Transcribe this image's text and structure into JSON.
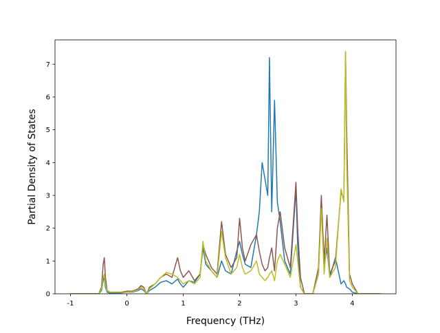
{
  "chart_data": {
    "type": "line",
    "xlabel": "Frequency (THz)",
    "ylabel": "Partial Density of States",
    "x": [
      -1,
      -0.5,
      -0.45,
      -0.42,
      -0.4,
      -0.38,
      -0.35,
      -0.3,
      -0.2,
      -0.1,
      0,
      0.1,
      0.2,
      0.25,
      0.3,
      0.35,
      0.4,
      0.5,
      0.6,
      0.7,
      0.8,
      0.9,
      0.95,
      1.0,
      1.1,
      1.2,
      1.3,
      1.35,
      1.4,
      1.5,
      1.6,
      1.68,
      1.75,
      1.85,
      1.95,
      2.0,
      2.05,
      2.1,
      2.2,
      2.3,
      2.35,
      2.4,
      2.45,
      2.5,
      2.53,
      2.57,
      2.62,
      2.67,
      2.72,
      2.8,
      2.9,
      3.0,
      3.03,
      3.08,
      3.15,
      3.3,
      3.4,
      3.45,
      3.5,
      3.55,
      3.6,
      3.7,
      3.8,
      3.85,
      3.88,
      3.9,
      3.95,
      4.0,
      4.1,
      4.5
    ],
    "series": [
      {
        "color": "#1f77b4",
        "values": [
          0,
          0,
          0.1,
          0.4,
          0.5,
          0.2,
          0.05,
          0.02,
          0.02,
          0.03,
          0.05,
          0.05,
          0.1,
          0.15,
          0.1,
          0,
          0.1,
          0.2,
          0.35,
          0.4,
          0.3,
          0.45,
          0.3,
          0.2,
          0.4,
          0.35,
          0.6,
          1.4,
          0.9,
          0.7,
          0.5,
          1.0,
          0.7,
          0.6,
          1.3,
          1.6,
          1.2,
          0.9,
          0.8,
          1.8,
          2.5,
          4.0,
          3.5,
          3.0,
          7.2,
          2.5,
          5.9,
          2.8,
          2.2,
          1.0,
          0.6,
          3.2,
          1.5,
          0.2,
          0,
          0,
          0.6,
          2.8,
          0.8,
          1.4,
          0.5,
          1.1,
          0.3,
          0.4,
          0.3,
          0.2,
          0.15,
          0.05,
          0,
          0
        ]
      },
      {
        "color": "#8c564b",
        "values": [
          0,
          0,
          0.2,
          0.9,
          1.1,
          0.5,
          0.1,
          0.05,
          0.05,
          0.05,
          0.08,
          0.08,
          0.15,
          0.25,
          0.2,
          0,
          0.2,
          0.3,
          0.5,
          0.6,
          0.5,
          1.1,
          0.7,
          0.5,
          0.7,
          0.4,
          0.6,
          1.5,
          1.2,
          0.8,
          0.6,
          2.2,
          1.2,
          0.8,
          1.1,
          2.3,
          1.4,
          1.0,
          1.5,
          1.8,
          1.3,
          0.9,
          0.7,
          0.8,
          1.1,
          1.4,
          0.7,
          2.0,
          2.5,
          1.4,
          0.8,
          3.4,
          2.0,
          0.5,
          0,
          0,
          0.8,
          3.0,
          1.0,
          2.4,
          0.6,
          1.0,
          3.1,
          2.9,
          7.38,
          5.0,
          0.6,
          0.3,
          0,
          0
        ]
      },
      {
        "color": "#bcbd22",
        "values": [
          0,
          0,
          0.15,
          0.5,
          0.6,
          0.3,
          0.08,
          0.05,
          0.05,
          0.05,
          0.05,
          0.06,
          0.12,
          0.2,
          0.15,
          0,
          0.15,
          0.3,
          0.5,
          0.65,
          0.6,
          0.5,
          0.4,
          0.3,
          0.4,
          0.3,
          0.5,
          1.6,
          1.0,
          0.7,
          0.5,
          1.9,
          1.1,
          0.6,
          0.8,
          1.2,
          0.8,
          0.6,
          0.7,
          1.0,
          0.6,
          0.5,
          0.4,
          0.5,
          0.6,
          0.7,
          0.4,
          1.0,
          1.2,
          0.9,
          0.5,
          1.5,
          1.0,
          0.2,
          0,
          0,
          0.6,
          2.6,
          0.6,
          1.7,
          0.5,
          0.8,
          3.2,
          2.8,
          7.38,
          4.0,
          0.4,
          0.2,
          0,
          0
        ]
      }
    ],
    "xlim": [
      -1.275,
      4.775
    ],
    "xticks": [
      -1,
      0,
      1,
      2,
      3,
      4
    ],
    "ylim": [
      0,
      7.74
    ],
    "yticks": [
      0,
      1,
      2,
      3,
      4,
      5,
      6,
      7
    ]
  }
}
